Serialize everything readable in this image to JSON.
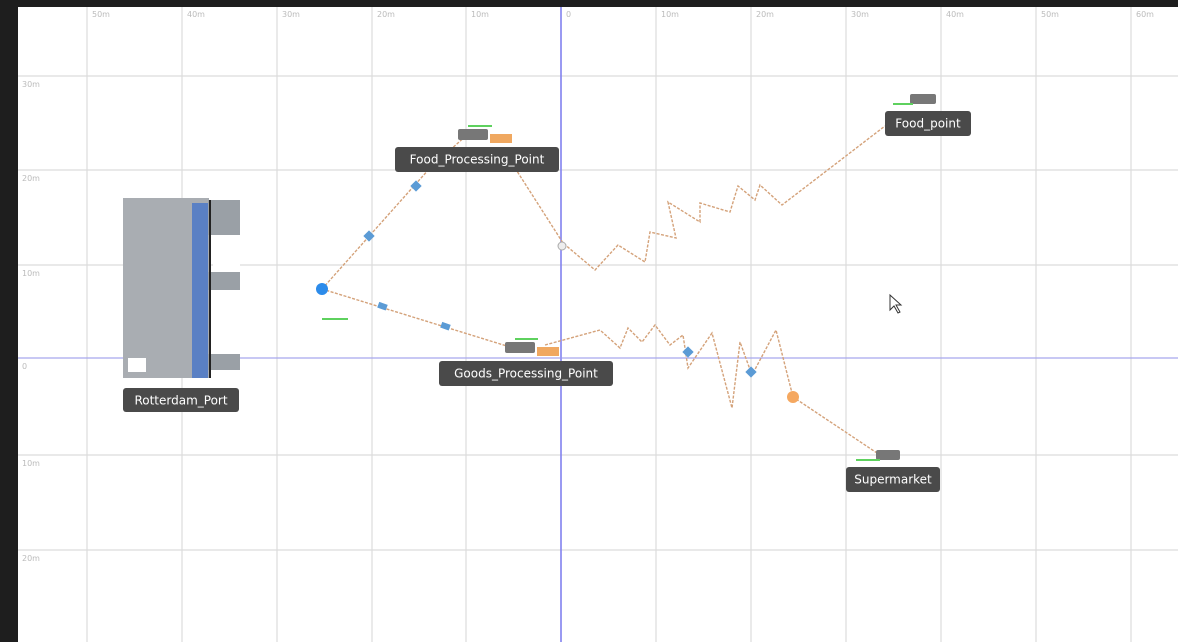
{
  "ruler": {
    "top": [
      "50m",
      "40m",
      "30m",
      "20m",
      "10m",
      "0",
      "10m",
      "20m",
      "30m",
      "40m",
      "50m",
      "60m"
    ],
    "left": [
      "30m",
      "20m",
      "10m",
      "0",
      "10m",
      "20m"
    ]
  },
  "nodes": [
    {
      "label": "Rotterdam_Port"
    },
    {
      "label": "Food_Processing_Point"
    },
    {
      "label": "Goods_Processing_Point"
    },
    {
      "label": "Food_point"
    },
    {
      "label": "Supermarket"
    }
  ]
}
